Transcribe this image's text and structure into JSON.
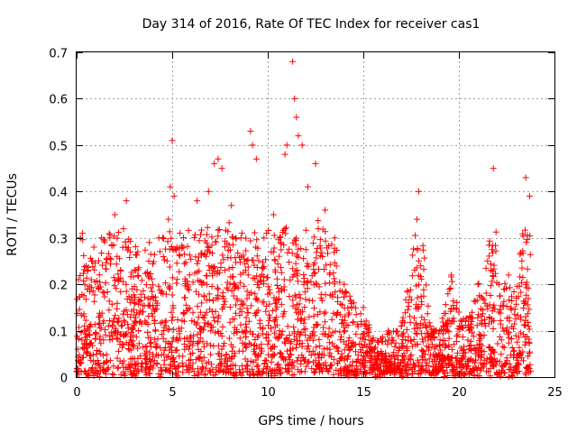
{
  "chart_data": {
    "type": "scatter",
    "title": "Day 314 of 2016, Rate Of TEC Index for receiver cas1",
    "xlabel": "GPS time / hours",
    "ylabel": "ROTI / TECUs",
    "xlim": [
      0,
      25
    ],
    "ylim": [
      0,
      0.7
    ],
    "xticks": [
      0,
      5,
      10,
      15,
      20,
      25
    ],
    "xtick_labels": [
      "0",
      "5",
      "10",
      "15",
      "20",
      "25"
    ],
    "yticks": [
      0,
      0.1,
      0.2,
      0.3,
      0.4,
      0.5,
      0.6,
      0.7
    ],
    "ytick_labels": [
      "0",
      "0.1",
      "0.2",
      "0.3",
      "0.4",
      "0.5",
      "0.6",
      "0.7"
    ],
    "grid": true,
    "marker": "+",
    "color": "#ff0000",
    "data_extent_hours": [
      0,
      23.75
    ],
    "series": [
      {
        "name": "ROTI",
        "points": [
          [
            0.1,
            0.21
          ],
          [
            0.2,
            0.3
          ],
          [
            0.3,
            0.31
          ],
          [
            0.5,
            0.24
          ],
          [
            0.9,
            0.28
          ],
          [
            1.3,
            0.3
          ],
          [
            2.0,
            0.35
          ],
          [
            2.6,
            0.38
          ],
          [
            3.2,
            0.27
          ],
          [
            3.8,
            0.29
          ],
          [
            4.3,
            0.3
          ],
          [
            4.8,
            0.34
          ],
          [
            4.9,
            0.41
          ],
          [
            5.0,
            0.51
          ],
          [
            5.1,
            0.39
          ],
          [
            6.3,
            0.38
          ],
          [
            6.9,
            0.4
          ],
          [
            7.2,
            0.46
          ],
          [
            7.4,
            0.47
          ],
          [
            7.6,
            0.45
          ],
          [
            8.1,
            0.37
          ],
          [
            8.6,
            0.3
          ],
          [
            9.1,
            0.53
          ],
          [
            9.2,
            0.5
          ],
          [
            9.4,
            0.47
          ],
          [
            9.8,
            0.3
          ],
          [
            10.3,
            0.35
          ],
          [
            10.9,
            0.48
          ],
          [
            11.0,
            0.5
          ],
          [
            11.3,
            0.68
          ],
          [
            11.4,
            0.6
          ],
          [
            11.5,
            0.56
          ],
          [
            11.6,
            0.52
          ],
          [
            11.8,
            0.5
          ],
          [
            12.1,
            0.41
          ],
          [
            12.5,
            0.46
          ],
          [
            13.0,
            0.36
          ],
          [
            13.5,
            0.3
          ],
          [
            14.0,
            0.2
          ],
          [
            14.5,
            0.16
          ],
          [
            15.0,
            0.15
          ],
          [
            15.5,
            0.08
          ],
          [
            16.3,
            0.1
          ],
          [
            17.0,
            0.11
          ],
          [
            17.8,
            0.34
          ],
          [
            17.9,
            0.4
          ],
          [
            18.5,
            0.11
          ],
          [
            19.0,
            0.1
          ],
          [
            19.6,
            0.22
          ],
          [
            20.0,
            0.14
          ],
          [
            20.5,
            0.12
          ],
          [
            21.0,
            0.2
          ],
          [
            21.5,
            0.25
          ],
          [
            21.8,
            0.45
          ],
          [
            22.1,
            0.2
          ],
          [
            22.6,
            0.22
          ],
          [
            23.0,
            0.17
          ],
          [
            23.5,
            0.43
          ],
          [
            23.7,
            0.39
          ]
        ]
      }
    ]
  }
}
